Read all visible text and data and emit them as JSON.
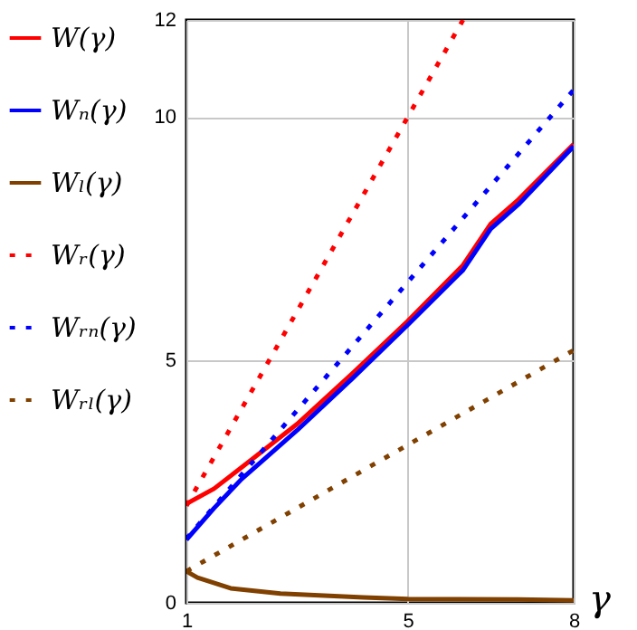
{
  "chart_data": {
    "type": "line",
    "xlabel": "γ",
    "xlim": [
      1,
      8
    ],
    "xticks": [
      1,
      5,
      8
    ],
    "ylim": [
      0,
      12
    ],
    "yticks": [
      0,
      5,
      10,
      12
    ],
    "grid": true,
    "legend": "left",
    "series": [
      {
        "name": "W(γ)",
        "color": "#ff0000",
        "line_style": "solid",
        "x": [
          1,
          1.5,
          2,
          3,
          4,
          5,
          6,
          6.5,
          7,
          8
        ],
        "values": [
          2.04,
          2.35,
          2.79,
          3.68,
          4.72,
          5.8,
          6.95,
          7.8,
          8.3,
          9.44
        ]
      },
      {
        "name": "Wₙ(γ)",
        "color": "#0000ff",
        "line_style": "solid",
        "x": [
          1,
          1.5,
          2,
          3,
          4,
          5,
          6,
          6.5,
          7,
          8
        ],
        "values": [
          1.3,
          1.95,
          2.55,
          3.55,
          4.62,
          5.72,
          6.85,
          7.7,
          8.2,
          9.4
        ]
      },
      {
        "name": "Wₗ(γ)",
        "color": "#804000",
        "line_style": "solid",
        "x": [
          1,
          1.2,
          1.8,
          2.7,
          4.2,
          5,
          7,
          8
        ],
        "values": [
          0.65,
          0.52,
          0.3,
          0.19,
          0.11,
          0.08,
          0.07,
          0.05
        ]
      },
      {
        "name": "Wᵣ(γ)",
        "color": "#ff0000",
        "line_style": "dotted",
        "x": [
          1,
          6
        ],
        "values": [
          2,
          12
        ]
      },
      {
        "name": "Wᵣₙ(γ)",
        "color": "#0000ff",
        "line_style": "dotted",
        "x": [
          1,
          8
        ],
        "values": [
          1.32,
          10.56
        ]
      },
      {
        "name": "Wᵣₗ(γ)",
        "color": "#804000",
        "line_style": "dotted",
        "x": [
          1,
          8
        ],
        "values": [
          0.65,
          5.2
        ]
      }
    ]
  }
}
